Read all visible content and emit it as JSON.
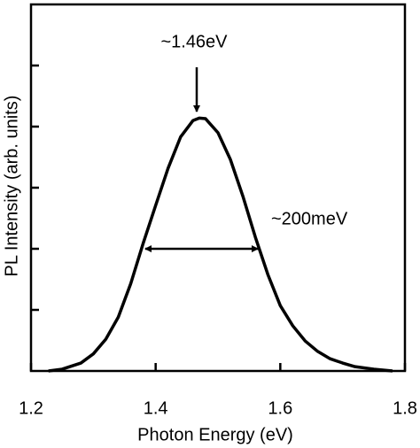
{
  "chart_data": {
    "type": "line",
    "xlabel": "Photon Energy (eV)",
    "ylabel": "PL Intensity (arb. units)",
    "annotations": [
      "~1.46eV",
      "~200meV"
    ],
    "x": [
      1.228,
      1.25,
      1.28,
      1.3,
      1.32,
      1.34,
      1.36,
      1.38,
      1.4,
      1.42,
      1.44,
      1.46,
      1.47,
      1.48,
      1.5,
      1.52,
      1.54,
      1.56,
      1.58,
      1.6,
      1.62,
      1.64,
      1.66,
      1.68,
      1.7,
      1.72,
      1.75,
      1.78
    ],
    "values": [
      0,
      0.03,
      0.13,
      0.28,
      0.52,
      0.88,
      1.43,
      2.09,
      2.71,
      3.32,
      3.83,
      4.1,
      4.14,
      4.13,
      3.9,
      3.46,
      2.86,
      2.19,
      1.58,
      1.07,
      0.74,
      0.49,
      0.32,
      0.2,
      0.13,
      0.07,
      0.03,
      0
    ],
    "color": "#000000",
    "xlim": [
      1.2,
      1.8
    ],
    "xticks": [
      1.2,
      1.4,
      1.6,
      1.8
    ],
    "ylim": [
      0,
      6
    ],
    "yticks": [
      1,
      2,
      3,
      4,
      5
    ]
  }
}
